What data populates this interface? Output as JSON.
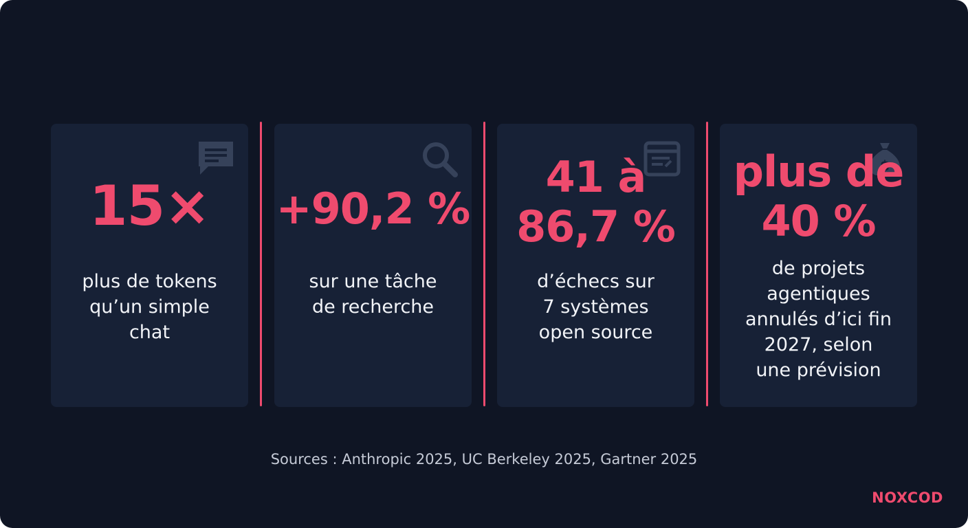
{
  "colors": {
    "background": "#0f1524",
    "card": "#172136",
    "accent": "#ef4b6e",
    "text": "#f1f3f7",
    "icon": "#3a465d"
  },
  "cards": [
    {
      "icon": "chat-bubble-icon",
      "stat_lines": [
        "15×"
      ],
      "desc_lines": [
        "plus de tokens",
        "qu’un simple",
        "chat"
      ]
    },
    {
      "icon": "search-icon",
      "stat_lines": [
        "+90,2 %"
      ],
      "desc_lines": [
        "sur une tâche",
        "de recherche"
      ]
    },
    {
      "icon": "document-icon",
      "stat_lines": [
        "41 à",
        "86,7 %"
      ],
      "desc_lines": [
        "d’échecs sur",
        "7 systèmes",
        "open source"
      ]
    },
    {
      "icon": "money-bag-icon",
      "stat_lines": [
        "plus de",
        "40 %"
      ],
      "desc_lines": [
        "de projets",
        "agentiques",
        "annulés d’ici fin",
        "2027, selon",
        "une prévision"
      ]
    }
  ],
  "sources": "Sources : Anthropic 2025, UC Berkeley 2025, Gartner 2025",
  "brand": "NOXCOD"
}
